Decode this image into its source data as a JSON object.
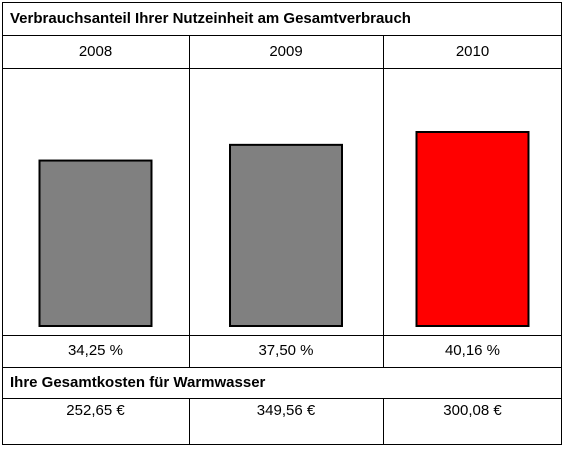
{
  "chart_data": {
    "type": "bar",
    "title": "Verbrauchsanteil Ihrer Nutzeinheit am Gesamtverbrauch",
    "categories": [
      "2008",
      "2009",
      "2010"
    ],
    "values": [
      34.25,
      37.5,
      40.16
    ],
    "value_labels": [
      "34,25 %",
      "37,50 %",
      "40,16 %"
    ],
    "colors": [
      "#808080",
      "#808080",
      "#ff0000"
    ]
  },
  "costs": {
    "title": "Ihre Gesamtkosten für Warmwasser",
    "values": [
      "252,65 €",
      "349,56 €",
      "300,08 €"
    ]
  }
}
